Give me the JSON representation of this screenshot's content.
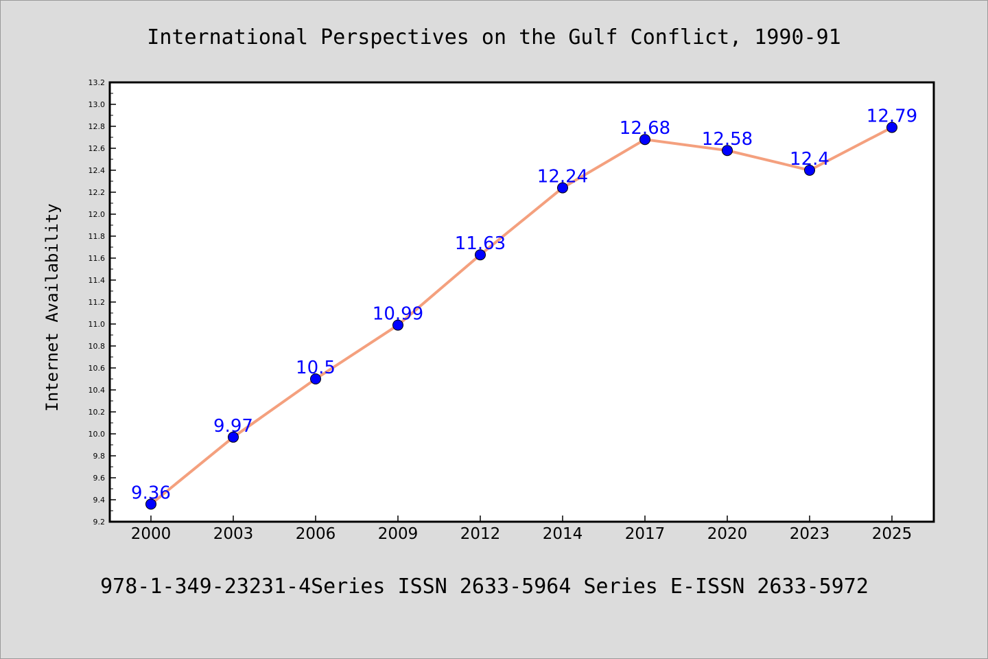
{
  "chart_data": {
    "type": "line",
    "title": "International Perspectives on the Gulf Conflict, 1990-91",
    "xlabel": "",
    "ylabel": "Internet Availability",
    "categories": [
      "2000",
      "2003",
      "2006",
      "2009",
      "2012",
      "2014",
      "2017",
      "2020",
      "2023",
      "2025"
    ],
    "series": [
      {
        "values": [
          9.36,
          9.97,
          10.5,
          10.99,
          11.63,
          12.24,
          12.68,
          12.58,
          12.4,
          12.79
        ],
        "data_labels": [
          "9.36",
          "9.97",
          "10.5",
          "10.99",
          "11.63",
          "12.24",
          "12.68",
          "12.58",
          "12.4",
          "12.79"
        ],
        "line_color": "#f4a07e",
        "marker_color": "#0000ff"
      }
    ],
    "ylim": [
      9.2,
      13.2
    ],
    "yticks": [
      "9.2",
      "9.4",
      "9.6",
      "9.8",
      "10.0",
      "10.2",
      "10.4",
      "10.6",
      "10.8",
      "11.0",
      "11.2",
      "11.4",
      "11.6",
      "11.8",
      "12.0",
      "12.2",
      "12.4",
      "12.6",
      "12.8",
      "13.0",
      "13.2"
    ],
    "grid": false,
    "legend": "none",
    "label_color": "#0000ff",
    "background": "#dcdcdc",
    "plot_background": "#ffffff"
  },
  "footer": {
    "text": "978-1-349-23231-4Series ISSN 2633-5964 Series E-ISSN 2633-5972"
  }
}
